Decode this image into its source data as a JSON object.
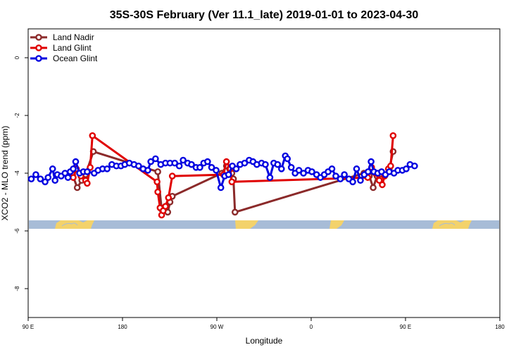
{
  "chart_data": {
    "type": "line",
    "title": "35S-30S February (Ver 11.1_late)   2019-01-01 to 2023-04-30",
    "xlabel": "Longitude",
    "ylabel": "XCO2 - MLO trend (ppm)",
    "xlim": [
      -90,
      180
    ],
    "ylim": [
      -9,
      1
    ],
    "x_ticks": [
      {
        "value": -90,
        "label": "90 E"
      },
      {
        "value": -36,
        "label": "180"
      },
      {
        "value": 18,
        "label": "90 W"
      },
      {
        "value": 72,
        "label": "0"
      },
      {
        "value": 126,
        "label": "90 E"
      },
      {
        "value": 180,
        "label": "180"
      }
    ],
    "y_ticks": [
      {
        "value": 0,
        "label": "0"
      },
      {
        "value": -2,
        "label": "-2"
      },
      {
        "value": -4,
        "label": "-4"
      },
      {
        "value": -6,
        "label": "-6"
      },
      {
        "value": -8,
        "label": "-8"
      }
    ],
    "grid": false,
    "legend": {
      "position": "top-left"
    },
    "series": [
      {
        "name": "Land Nadir",
        "color": "#8b2a2a",
        "points": [
          [
            -64.6,
            -4.05
          ],
          [
            -61.9,
            -4.5
          ],
          [
            -59.3,
            -4.25
          ],
          [
            -57.1,
            -4.05
          ],
          [
            -52.7,
            -3.25
          ],
          [
            -15.8,
            -3.95
          ],
          [
            -13.6,
            -5.25
          ],
          [
            -11.4,
            -5.15
          ],
          [
            -10.1,
            -5.35
          ],
          [
            -8.8,
            -5.0
          ],
          [
            -7.5,
            -4.8
          ],
          [
            20.9,
            -4.0
          ],
          [
            23.5,
            -3.75
          ],
          [
            25.3,
            -3.85
          ],
          [
            26.6,
            -4.0
          ],
          [
            27.5,
            -4.2
          ],
          [
            28.4,
            -5.35
          ],
          [
            102.2,
            -4.0
          ],
          [
            105.3,
            -4.1
          ],
          [
            107.5,
            -4.5
          ],
          [
            109.7,
            -4.1
          ],
          [
            111.9,
            -4.2
          ],
          [
            114.0,
            -4.1
          ],
          [
            116.7,
            -3.85
          ],
          [
            118.9,
            -3.25
          ]
        ]
      },
      {
        "name": "Land Glint",
        "color": "#e00000",
        "points": [
          [
            -66.8,
            -4.05
          ],
          [
            -64.2,
            -4.15
          ],
          [
            -62.4,
            -3.85
          ],
          [
            -59.8,
            -4.1
          ],
          [
            -57.1,
            -4.25
          ],
          [
            -56.2,
            -4.35
          ],
          [
            -54.5,
            -3.8
          ],
          [
            -53.2,
            -2.7
          ],
          [
            -16.2,
            -4.3
          ],
          [
            -15.8,
            -4.65
          ],
          [
            -14.5,
            -5.2
          ],
          [
            -13.6,
            -5.45
          ],
          [
            -12.7,
            -5.3
          ],
          [
            -11.4,
            -5.15
          ],
          [
            -9.7,
            -4.85
          ],
          [
            -7.5,
            -4.1
          ],
          [
            21.8,
            -4.05
          ],
          [
            23.5,
            -3.6
          ],
          [
            25.7,
            -3.85
          ],
          [
            26.6,
            -4.3
          ],
          [
            104.4,
            -4.15
          ],
          [
            106.6,
            -3.8
          ],
          [
            108.8,
            -4.0
          ],
          [
            111.0,
            -4.25
          ],
          [
            112.7,
            -4.4
          ],
          [
            114.0,
            -4.1
          ],
          [
            116.2,
            -3.85
          ],
          [
            117.5,
            -3.75
          ],
          [
            118.9,
            -2.7
          ]
        ]
      },
      {
        "name": "Ocean Glint",
        "color": "#0000e0",
        "points": [
          [
            -88.2,
            -4.2
          ],
          [
            -85.6,
            -4.05
          ],
          [
            -83.0,
            -4.2
          ],
          [
            -80.3,
            -4.3
          ],
          [
            -78.6,
            -4.15
          ],
          [
            -76.0,
            -3.85
          ],
          [
            -74.6,
            -4.25
          ],
          [
            -73.3,
            -4.05
          ],
          [
            -71.1,
            -4.1
          ],
          [
            -68.9,
            -4.0
          ],
          [
            -67.2,
            -4.15
          ],
          [
            -65.9,
            -3.95
          ],
          [
            -64.2,
            -3.85
          ],
          [
            -62.8,
            -3.6
          ],
          [
            -60.6,
            -4.0
          ],
          [
            -58.4,
            -3.95
          ],
          [
            -56.2,
            -3.95
          ],
          [
            -52.2,
            -4.0
          ],
          [
            -50.0,
            -3.9
          ],
          [
            -47.4,
            -3.85
          ],
          [
            -44.8,
            -3.85
          ],
          [
            -42.1,
            -3.7
          ],
          [
            -39.5,
            -3.75
          ],
          [
            -36.9,
            -3.75
          ],
          [
            -34.7,
            -3.7
          ],
          [
            -32.1,
            -3.65
          ],
          [
            -29.4,
            -3.7
          ],
          [
            -26.8,
            -3.75
          ],
          [
            -24.2,
            -3.85
          ],
          [
            -21.5,
            -3.9
          ],
          [
            -19.8,
            -3.6
          ],
          [
            -17.1,
            -3.5
          ],
          [
            -14.1,
            -3.7
          ],
          [
            -11.4,
            -3.65
          ],
          [
            -8.8,
            -3.65
          ],
          [
            -6.1,
            -3.65
          ],
          [
            -3.5,
            -3.75
          ],
          [
            -1.3,
            -3.55
          ],
          [
            1.3,
            -3.65
          ],
          [
            3.5,
            -3.7
          ],
          [
            6.1,
            -3.8
          ],
          [
            8.3,
            -3.8
          ],
          [
            10.5,
            -3.65
          ],
          [
            12.7,
            -3.6
          ],
          [
            15.0,
            -3.8
          ],
          [
            17.6,
            -3.9
          ],
          [
            20.3,
            -4.5
          ],
          [
            22.5,
            -4.1
          ],
          [
            24.7,
            -4.05
          ],
          [
            26.9,
            -3.75
          ],
          [
            29.1,
            -3.85
          ],
          [
            31.3,
            -3.7
          ],
          [
            33.9,
            -3.65
          ],
          [
            36.5,
            -3.55
          ],
          [
            38.7,
            -3.6
          ],
          [
            40.9,
            -3.7
          ],
          [
            43.6,
            -3.65
          ],
          [
            45.8,
            -3.7
          ],
          [
            48.4,
            -4.15
          ],
          [
            50.6,
            -3.65
          ],
          [
            52.8,
            -3.7
          ],
          [
            55.0,
            -3.85
          ],
          [
            57.2,
            -3.4
          ],
          [
            58.4,
            -3.5
          ],
          [
            60.6,
            -3.8
          ],
          [
            62.8,
            -4.0
          ],
          [
            65.0,
            -3.9
          ],
          [
            67.6,
            -4.0
          ],
          [
            70.2,
            -3.9
          ],
          [
            72.4,
            -3.95
          ],
          [
            75.1,
            -4.05
          ],
          [
            77.3,
            -4.15
          ],
          [
            79.5,
            -4.05
          ],
          [
            81.7,
            -3.95
          ],
          [
            83.9,
            -3.85
          ],
          [
            86.1,
            -4.1
          ],
          [
            88.7,
            -4.2
          ],
          [
            91.0,
            -4.05
          ],
          [
            93.6,
            -4.2
          ],
          [
            95.8,
            -4.3
          ],
          [
            98.0,
            -3.85
          ],
          [
            100.2,
            -4.25
          ],
          [
            102.4,
            -4.05
          ],
          [
            104.6,
            -3.95
          ],
          [
            106.3,
            -3.6
          ],
          [
            107.9,
            -3.95
          ],
          [
            110.1,
            -4.0
          ],
          [
            112.3,
            -3.95
          ],
          [
            114.5,
            -4.05
          ],
          [
            116.7,
            -3.95
          ],
          [
            119.4,
            -4.0
          ],
          [
            121.6,
            -3.9
          ],
          [
            124.2,
            -3.9
          ],
          [
            126.4,
            -3.85
          ],
          [
            128.6,
            -3.7
          ],
          [
            131.2,
            -3.75
          ]
        ]
      }
    ]
  }
}
